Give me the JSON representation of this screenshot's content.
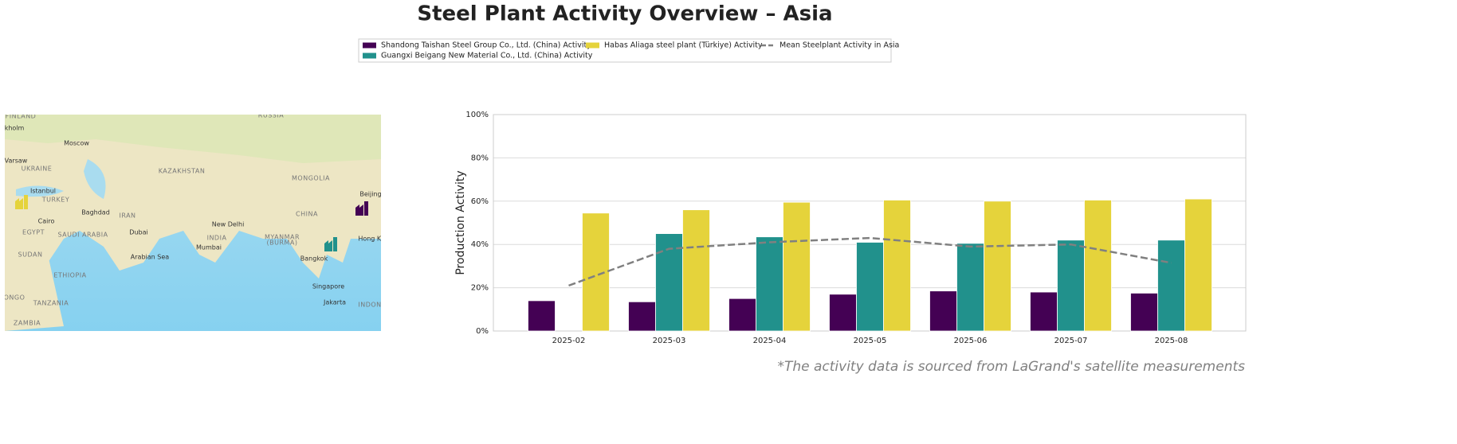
{
  "chart_data": {
    "type": "bar",
    "title": "Steel Plant Activity Overview – Asia",
    "ylabel": "Production Activity",
    "footnote": "*The activity data is sourced from LaGrand's satellite measurements",
    "categories": [
      "2025-02",
      "2025-03",
      "2025-04",
      "2025-05",
      "2025-06",
      "2025-07",
      "2025-08"
    ],
    "series": [
      {
        "name": "Shandong Taishan Steel Group Co., Ltd. (China) Activity",
        "color": "#440154",
        "values": [
          14,
          13.5,
          15,
          17,
          18.5,
          18,
          17.5
        ]
      },
      {
        "name": "Guangxi Beigang New Material Co., Ltd. (China) Activity",
        "color": "#21918c",
        "values": [
          null,
          45,
          43.5,
          41,
          40.5,
          42,
          42
        ]
      },
      {
        "name": "Habas Aliaga steel plant (Türkiye) Activity",
        "color": "#e5d33b",
        "values": [
          54.5,
          56,
          59.5,
          60.5,
          60,
          60.5,
          61
        ]
      },
      {
        "name": "Mean Steelplant Activity in Asia",
        "color": "#808080",
        "type": "line",
        "linestyle": "dashed",
        "values": [
          21,
          38,
          41,
          43,
          39,
          40,
          31.5
        ]
      }
    ],
    "ylim": [
      0,
      100
    ],
    "yticks": [
      {
        "value": 0,
        "label": "0%"
      },
      {
        "value": 20,
        "label": "20%"
      },
      {
        "value": 40,
        "label": "40%"
      },
      {
        "value": 60,
        "label": "60%"
      },
      {
        "value": 80,
        "label": "80%"
      },
      {
        "value": 100,
        "label": "100%"
      }
    ],
    "grid": true,
    "legend": "top"
  },
  "map": {
    "labels": [
      "FINLAND",
      "RUSSIA",
      "kholm",
      "Moscow",
      "Varsaw",
      "UKRAINE",
      "KAZAKHSTAN",
      "MONGOLIA",
      "Istanbul",
      "TURKEY",
      "Beijing",
      "Baghdad",
      "IRAN",
      "CHINA",
      "Cairo",
      "EGYPT",
      "SAUDI ARABIA",
      "Dubai",
      "New Delhi",
      "INDIA",
      "MYANMAR",
      "(BURMA)",
      "Hong Ko",
      "SUDAN",
      "Mumbai",
      "Arabian Sea",
      "Bangkok",
      "ETHIOPIA",
      "Singapore",
      "ONGO",
      "TANZANIA",
      "Jakarta",
      "INDON",
      "ZAMBIA"
    ]
  }
}
